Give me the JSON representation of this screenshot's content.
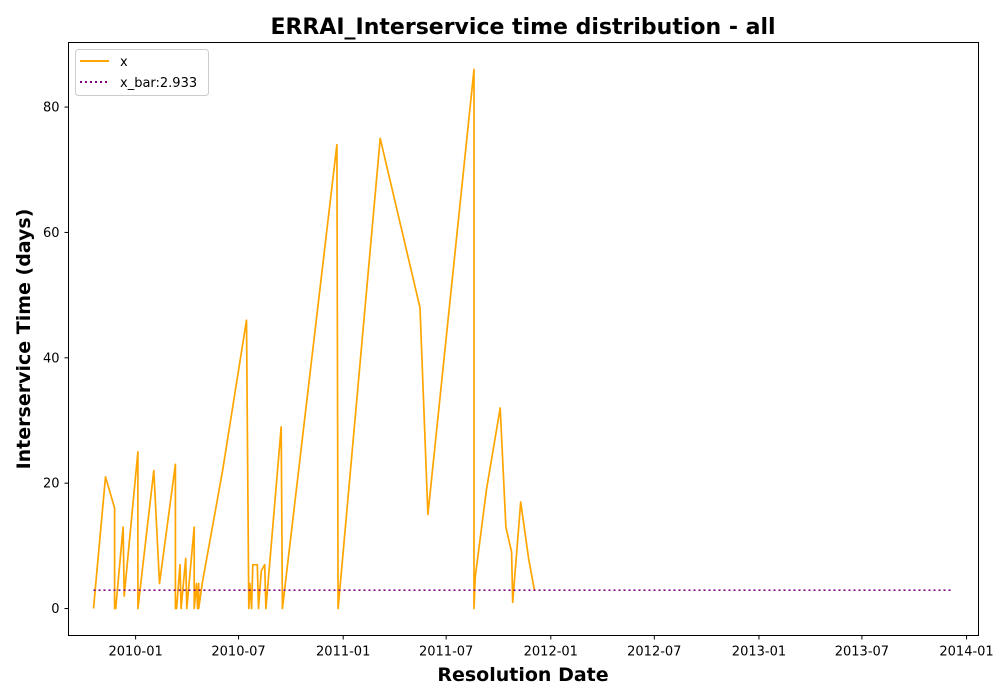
{
  "chart_data": {
    "type": "line",
    "title": "ERRAI_Interservice time distribution - all",
    "xlabel": "Resolution Date",
    "ylabel": "Interservice Time (days)",
    "x_ticks": [
      "2010-01",
      "2010-07",
      "2011-01",
      "2011-07",
      "2012-01",
      "2012-07",
      "2013-01",
      "2013-07",
      "2014-01"
    ],
    "y_ticks": [
      0,
      20,
      40,
      60,
      80
    ],
    "xlim": [
      "2009-09-05",
      "2014-01-22"
    ],
    "ylim": [
      -4.3,
      90.3
    ],
    "grid": false,
    "legend_position": "top-left",
    "series": [
      {
        "name": "x",
        "color": "#ffa500",
        "style": "solid",
        "x": [
          "2009-10-19",
          "2009-11-09",
          "2009-11-25",
          "2009-11-25",
          "2009-11-27",
          "2009-12-10",
          "2009-12-12",
          "2010-01-05",
          "2010-01-05",
          "2010-02-02",
          "2010-02-12",
          "2010-03-12",
          "2010-03-12",
          "2010-03-14",
          "2010-03-20",
          "2010-03-22",
          "2010-03-30",
          "2010-04-01",
          "2010-04-14",
          "2010-04-14",
          "2010-04-18",
          "2010-04-20",
          "2010-04-22",
          "2010-04-22",
          "2010-04-28",
          "2010-06-03",
          "2010-07-15",
          "2010-07-19",
          "2010-07-21",
          "2010-07-24",
          "2010-07-26",
          "2010-08-03",
          "2010-08-05",
          "2010-08-10",
          "2010-08-16",
          "2010-08-18",
          "2010-09-14",
          "2010-09-16",
          "2010-12-21",
          "2010-12-23",
          "2011-03-07",
          "2011-05-16",
          "2011-05-30",
          "2011-08-19",
          "2011-08-19",
          "2011-08-21",
          "2011-09-10",
          "2011-10-04",
          "2011-10-14",
          "2011-10-24",
          "2011-10-26",
          "2011-11-09",
          "2011-11-23",
          "2011-12-03",
          "2011-12-03"
        ],
        "values": [
          0,
          21,
          16,
          0,
          0,
          13,
          2,
          25,
          0,
          22,
          4,
          23,
          0,
          0,
          7,
          0,
          8,
          0,
          13,
          0,
          4,
          0,
          4,
          0,
          4,
          22,
          46,
          0,
          4,
          0,
          7,
          7,
          0,
          6,
          7,
          0,
          29,
          0,
          74,
          0,
          75,
          48,
          15,
          86,
          0,
          5,
          19,
          32,
          13,
          9,
          1,
          17,
          8,
          3,
          3
        ]
      },
      {
        "name": "x_bar:2.933",
        "color": "#800080",
        "style": "dotted",
        "x": [
          "2009-10-19",
          "2013-12-09"
        ],
        "values": [
          2.933,
          2.933
        ]
      }
    ]
  },
  "legend": {
    "entries": [
      "x",
      "x_bar:2.933"
    ]
  }
}
